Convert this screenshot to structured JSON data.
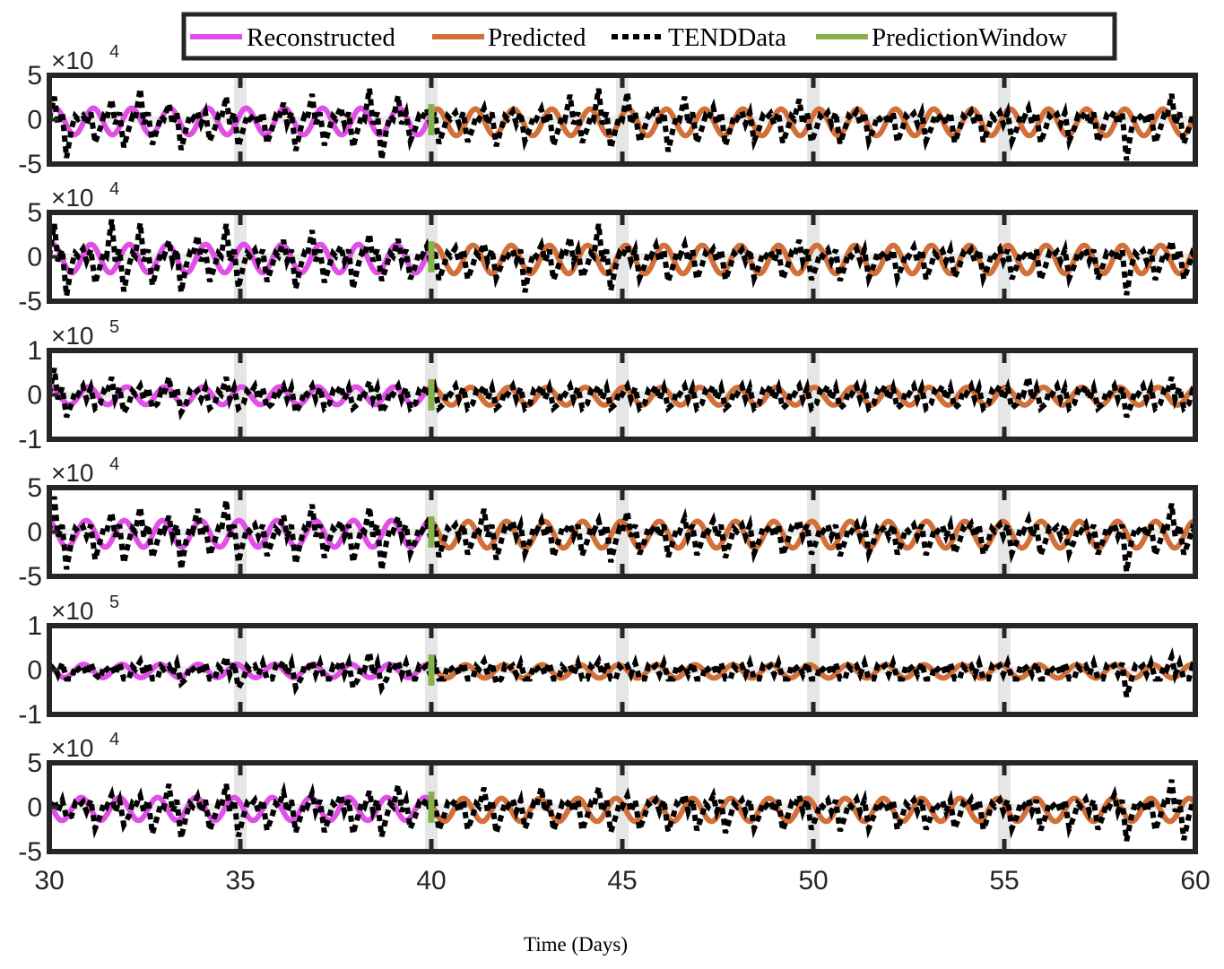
{
  "chart_data": {
    "type": "line",
    "xlabel": "Time (Days)",
    "xlim": [
      30,
      60
    ],
    "xticks": [
      "30",
      "35",
      "40",
      "45",
      "50",
      "55",
      "60"
    ],
    "prediction_start": 40,
    "colors": {
      "reconstructed": "#e04fe6",
      "predicted": "#d2703a",
      "data": "#000000",
      "window": "#86b04a"
    },
    "legend": {
      "placement": "top-center",
      "entries": [
        {
          "key": "reconstructed",
          "label": "Reconstructed"
        },
        {
          "key": "predicted",
          "label": "Predicted"
        },
        {
          "key": "data",
          "label": "TENDData"
        },
        {
          "key": "window",
          "label": "PredictionWindow"
        }
      ]
    },
    "panels": [
      {
        "multiplier": "×10",
        "exponent": "4",
        "yticks": [
          "5",
          "0",
          "-5"
        ],
        "ylim": [
          -5,
          5
        ],
        "series": {
          "reconstructed": {
            "amplitude": 1.5,
            "offset": -0.2,
            "x": [
              30,
              40
            ]
          },
          "predicted": {
            "amplitude": 1.5,
            "offset": -0.3,
            "x": [
              40,
              60
            ]
          },
          "data": {
            "spikes_hi": [
              2.6,
              0.5,
              2.3,
              3.5,
              1.8,
              0.9,
              2.6,
              0.6,
              1.9,
              2.9,
              1.4,
              3.5,
              2.7,
              1.2,
              0.8,
              1.3,
              0.9,
              1.2,
              2.8,
              3.5,
              3.1,
              1.5,
              2.6,
              1.4,
              0.9,
              0.7,
              2.3,
              0.8,
              0.9,
              0.5,
              0.7,
              0.6,
              0.9,
              0.8,
              1.3,
              0.6,
              0.9,
              0.9,
              0.7,
              2.9
            ],
            "spikes_lo": [
              -4.3,
              -2.6,
              -3.1,
              -2.8,
              -3.4,
              -2.4,
              -3.0,
              -2.7,
              -3.5,
              -2.9,
              -3.1,
              -4.5,
              -2.4,
              -2.7,
              -2.5,
              -3.0,
              -2.4,
              -2.9,
              -2.6,
              -3.2,
              -2.5,
              -3.6,
              -2.6,
              -2.9,
              -2.4,
              -2.6,
              -2.5,
              -2.7,
              -2.4,
              -2.5,
              -2.4,
              -2.6,
              -2.5,
              -2.4,
              -2.6,
              -2.4,
              -2.5,
              -4.6,
              -2.6,
              -2.7
            ]
          }
        }
      },
      {
        "multiplier": "×10",
        "exponent": "4",
        "yticks": [
          "5",
          "0",
          "-5"
        ],
        "ylim": [
          -5,
          5
        ],
        "series": {
          "reconstructed": {
            "amplitude": 1.6,
            "offset": -0.2,
            "x": [
              30,
              40
            ]
          },
          "predicted": {
            "amplitude": 1.6,
            "offset": -0.3,
            "x": [
              40,
              60
            ]
          },
          "data": {
            "spikes_hi": [
              3.7,
              0.9,
              4.2,
              3.8,
              1.8,
              2.4,
              3.7,
              0.8,
              1.9,
              3.0,
              1.2,
              2.6,
              2.0,
              1.2,
              1.0,
              1.5,
              0.8,
              1.3,
              2.2,
              3.7,
              1.2,
              1.3,
              1.4,
              0.9,
              0.8,
              0.7,
              1.9,
              0.8,
              0.9,
              0.6,
              1.1,
              0.7,
              0.8,
              0.9,
              0.7,
              0.6,
              0.9,
              0.8,
              0.7,
              1.8
            ],
            "spikes_lo": [
              -4.4,
              -3.0,
              -3.9,
              -3.2,
              -4.0,
              -2.8,
              -3.5,
              -2.8,
              -3.6,
              -2.9,
              -3.6,
              -2.7,
              -2.5,
              -2.6,
              -2.5,
              -2.4,
              -4.0,
              -2.6,
              -2.3,
              -3.8,
              -2.4,
              -2.8,
              -2.5,
              -2.6,
              -2.4,
              -2.5,
              -2.6,
              -2.7,
              -2.4,
              -2.4,
              -2.5,
              -2.3,
              -2.4,
              -2.5,
              -2.6,
              -2.4,
              -2.5,
              -4.3,
              -2.6,
              -2.5
            ]
          }
        }
      },
      {
        "multiplier": "×10",
        "exponent": "5",
        "yticks": [
          "1",
          "0",
          "-1"
        ],
        "ylim": [
          -1,
          1
        ],
        "series": {
          "reconstructed": {
            "amplitude": 0.2,
            "offset": -0.02,
            "x": [
              30,
              40
            ]
          },
          "predicted": {
            "amplitude": 0.2,
            "offset": -0.03,
            "x": [
              40,
              60
            ]
          },
          "data": {
            "spikes_hi": [
              0.6,
              0.2,
              0.4,
              0.2,
              0.4,
              0.1,
              0.4,
              0.2,
              0.2,
              0.2,
              0.2,
              0.3,
              0.2,
              0.2,
              0.2,
              0.2,
              0.2,
              0.2,
              0.2,
              0.2,
              0.2,
              0.2,
              0.2,
              0.2,
              0.2,
              0.2,
              0.2,
              0.2,
              0.2,
              0.2,
              0.2,
              0.2,
              0.2,
              0.2,
              0.4,
              0.2,
              0.2,
              0.2,
              0.2,
              0.4
            ],
            "spikes_lo": [
              -0.5,
              -0.3,
              -0.4,
              -0.3,
              -0.4,
              -0.3,
              -0.3,
              -0.3,
              -0.4,
              -0.3,
              -0.3,
              -0.4,
              -0.3,
              -0.3,
              -0.3,
              -0.3,
              -0.3,
              -0.3,
              -0.3,
              -0.3,
              -0.3,
              -0.3,
              -0.3,
              -0.3,
              -0.3,
              -0.3,
              -0.3,
              -0.3,
              -0.3,
              -0.3,
              -0.3,
              -0.3,
              -0.3,
              -0.3,
              -0.3,
              -0.3,
              -0.3,
              -0.5,
              -0.3,
              -0.3
            ]
          }
        }
      },
      {
        "multiplier": "×10",
        "exponent": "4",
        "yticks": [
          "5",
          "0",
          "-5"
        ],
        "ylim": [
          -5,
          5
        ],
        "series": {
          "reconstructed": {
            "amplitude": 1.5,
            "offset": -0.2,
            "x": [
              30,
              40
            ]
          },
          "predicted": {
            "amplitude": 1.5,
            "offset": -0.3,
            "x": [
              40,
              60
            ]
          },
          "data": {
            "spikes_hi": [
              4.0,
              0.6,
              2.2,
              2.8,
              1.8,
              2.6,
              3.6,
              0.8,
              1.9,
              3.1,
              1.2,
              2.8,
              1.7,
              1.0,
              0.8,
              2.6,
              1.2,
              1.3,
              0.9,
              1.3,
              2.3,
              0.8,
              1.6,
              1.3,
              0.8,
              0.7,
              1.3,
              0.8,
              0.9,
              0.6,
              0.8,
              0.7,
              0.9,
              0.8,
              1.4,
              0.6,
              0.9,
              0.9,
              0.7,
              3.2
            ],
            "spikes_lo": [
              -4.2,
              -3.1,
              -3.5,
              -2.9,
              -4.2,
              -2.6,
              -3.4,
              -2.7,
              -3.6,
              -2.9,
              -3.4,
              -4.3,
              -2.4,
              -2.8,
              -2.5,
              -3.1,
              -2.4,
              -2.8,
              -2.6,
              -3.4,
              -2.5,
              -2.8,
              -2.6,
              -2.9,
              -2.4,
              -2.6,
              -2.5,
              -2.7,
              -2.4,
              -2.5,
              -2.6,
              -2.4,
              -2.5,
              -2.4,
              -2.6,
              -2.4,
              -2.5,
              -4.5,
              -2.6,
              -2.5
            ]
          }
        }
      },
      {
        "multiplier": "×10",
        "exponent": "5",
        "yticks": [
          "1",
          "0",
          "-1"
        ],
        "ylim": [
          -1,
          1
        ],
        "series": {
          "reconstructed": {
            "amplitude": 0.15,
            "offset": -0.02,
            "x": [
              30,
              40
            ]
          },
          "predicted": {
            "amplitude": 0.15,
            "offset": -0.03,
            "x": [
              40,
              60
            ]
          },
          "data": {
            "spikes_hi": [
              0.1,
              0.1,
              0.1,
              0.2,
              0.1,
              0.1,
              0.3,
              0.1,
              0.2,
              0.2,
              0.2,
              0.4,
              0.2,
              0.1,
              0.1,
              0.2,
              0.1,
              0.1,
              0.1,
              0.2,
              0.1,
              0.1,
              0.1,
              0.1,
              0.1,
              0.1,
              0.1,
              0.1,
              0.1,
              0.1,
              0.1,
              0.1,
              0.1,
              0.1,
              0.1,
              0.1,
              0.1,
              0.1,
              0.1,
              0.3
            ],
            "spikes_lo": [
              -0.2,
              -0.1,
              -0.2,
              -0.2,
              -0.3,
              -0.2,
              -0.4,
              -0.2,
              -0.4,
              -0.2,
              -0.4,
              -0.4,
              -0.2,
              -0.2,
              -0.2,
              -0.3,
              -0.2,
              -0.2,
              -0.2,
              -0.2,
              -0.2,
              -0.2,
              -0.2,
              -0.2,
              -0.2,
              -0.2,
              -0.2,
              -0.2,
              -0.2,
              -0.2,
              -0.2,
              -0.2,
              -0.2,
              -0.2,
              -0.2,
              -0.2,
              -0.2,
              -0.6,
              -0.2,
              -0.2
            ]
          }
        }
      },
      {
        "multiplier": "×10",
        "exponent": "4",
        "yticks": [
          "5",
          "0",
          "-5"
        ],
        "ylim": [
          -5,
          5
        ],
        "series": {
          "reconstructed": {
            "amplitude": 1.3,
            "offset": -0.2,
            "x": [
              30,
              40
            ]
          },
          "predicted": {
            "amplitude": 1.3,
            "offset": -0.3,
            "x": [
              40,
              60
            ]
          },
          "data": {
            "spikes_hi": [
              0.8,
              0.6,
              1.4,
              1.3,
              2.6,
              1.2,
              2.6,
              0.8,
              1.7,
              1.6,
              1.4,
              1.8,
              2.5,
              0.9,
              0.8,
              2.2,
              0.9,
              2.2,
              0.8,
              2.2,
              1.3,
              0.8,
              1.4,
              1.3,
              0.8,
              0.7,
              1.3,
              0.8,
              0.9,
              0.6,
              0.8,
              0.7,
              0.9,
              0.8,
              0.9,
              0.6,
              0.9,
              1.4,
              0.7,
              3.1
            ],
            "spikes_lo": [
              -1.2,
              -2.4,
              -2.0,
              -3.0,
              -3.5,
              -2.6,
              -3.3,
              -2.6,
              -2.8,
              -2.8,
              -3.0,
              -3.3,
              -2.4,
              -2.6,
              -2.5,
              -2.9,
              -2.4,
              -2.6,
              -2.6,
              -2.8,
              -2.5,
              -2.7,
              -2.6,
              -2.9,
              -2.4,
              -2.6,
              -2.5,
              -2.7,
              -2.4,
              -2.5,
              -2.5,
              -2.4,
              -2.5,
              -2.4,
              -2.6,
              -2.4,
              -2.5,
              -3.8,
              -2.6,
              -3.7
            ]
          }
        }
      }
    ]
  }
}
